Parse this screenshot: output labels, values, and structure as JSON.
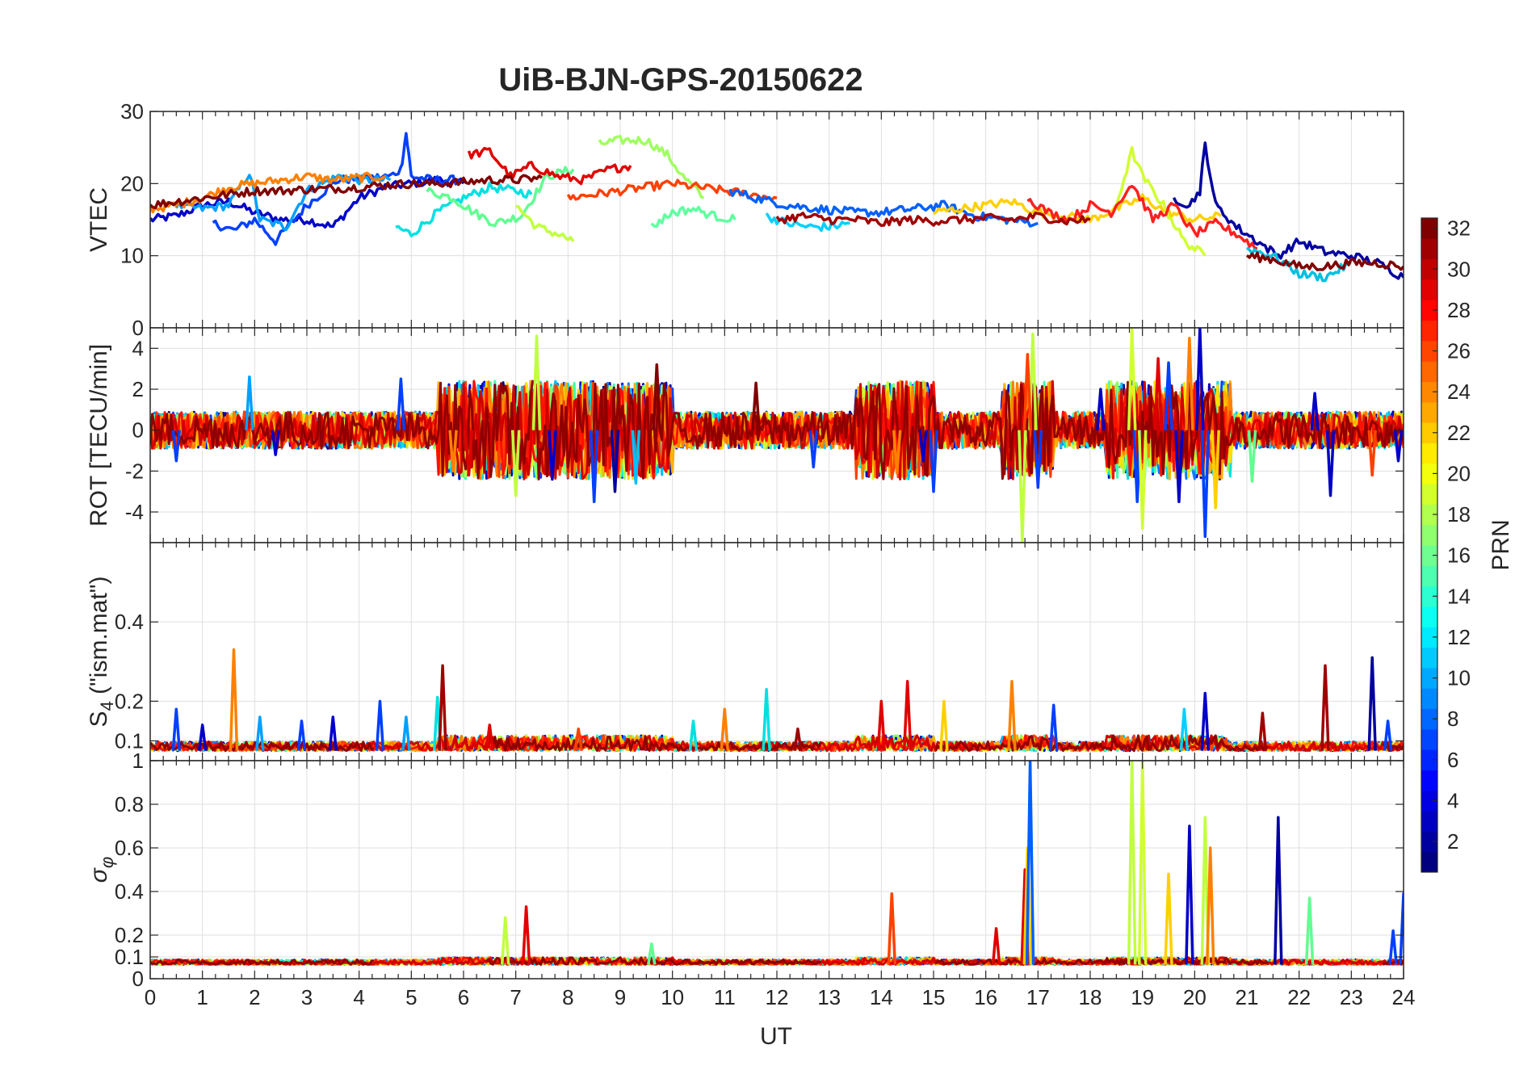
{
  "figure": {
    "title": "UiB-BJN-GPS-20150622",
    "xlabel": "UT",
    "colorbar_label": "PRN"
  },
  "chart_data": [
    {
      "type": "line",
      "panel": "vtec",
      "ylabel": "VTEC",
      "xlim": [
        0,
        24
      ],
      "ylim": [
        0,
        30
      ],
      "yticks": [
        0,
        10,
        20,
        30
      ],
      "grid": true,
      "series": [
        {
          "color": "#0000c8",
          "x": [
            0,
            0.5,
            1,
            1.5,
            2,
            2.5,
            3,
            3.5,
            4,
            4.5,
            5,
            5.5,
            6
          ],
          "y": [
            15,
            15.5,
            17,
            17.5,
            16,
            15,
            15,
            14,
            18,
            19.5,
            20,
            20.5,
            20
          ]
        },
        {
          "color": "#0040ff",
          "x": [
            1.2,
            1.6,
            2,
            2.4,
            3,
            3.6,
            4.2,
            4.6,
            4.8,
            4.9,
            5.0,
            5.4,
            6
          ],
          "y": [
            14.5,
            13.5,
            15,
            12,
            17,
            20.5,
            20.8,
            21,
            22,
            27,
            21,
            20.5,
            20.5
          ]
        },
        {
          "color": "#00a0ff",
          "x": [
            0.5,
            1,
            1.5,
            1.9,
            2.1,
            2.6,
            3,
            3.6,
            4,
            4.6
          ],
          "y": [
            17,
            16.5,
            17,
            21.5,
            15,
            14,
            19,
            21,
            20.5,
            20.5
          ]
        },
        {
          "color": "#00e0e0",
          "x": [
            4.7,
            5,
            5.5,
            6,
            6.5,
            7,
            7.3
          ],
          "y": [
            14,
            13,
            16,
            18,
            19.5,
            19,
            18.5
          ]
        },
        {
          "color": "#60ff90",
          "x": [
            5.3,
            5.8,
            6.2,
            6.6,
            7.1,
            7.6,
            8.1
          ],
          "y": [
            19,
            18,
            16,
            14.5,
            15.5,
            21,
            22
          ]
        },
        {
          "color": "#c0ff40",
          "x": [
            7.0,
            7.4,
            7.8,
            8.1
          ],
          "y": [
            17,
            14,
            13,
            12
          ]
        },
        {
          "color": "#a0ff60",
          "x": [
            8.6,
            9,
            9.5,
            9.9,
            10.2,
            10.6
          ],
          "y": [
            25.5,
            26,
            26,
            24,
            21,
            18
          ]
        },
        {
          "color": "#ff8000",
          "x": [
            0,
            0.5,
            1,
            1.5,
            2,
            2.5,
            3,
            3.5,
            4,
            4.5
          ],
          "y": [
            16.5,
            17,
            18,
            19.5,
            20,
            20.5,
            21,
            20.5,
            20.8,
            21
          ]
        },
        {
          "color": "#ff4000",
          "x": [
            8.0,
            8.5,
            9,
            9.5,
            10,
            10.5,
            11,
            11.5,
            12
          ],
          "y": [
            18,
            18.5,
            19,
            19.5,
            20,
            19.5,
            19,
            18.5,
            18
          ]
        },
        {
          "color": "#e00000",
          "x": [
            6.1,
            6.5,
            6.9,
            7.3,
            7.8,
            8.3,
            8.8,
            9.2
          ],
          "y": [
            24,
            24.5,
            21,
            22.5,
            21,
            20.5,
            22,
            22.5
          ]
        },
        {
          "color": "#800000",
          "x": [
            0,
            0.5,
            1,
            1.5,
            2,
            2.5,
            3,
            3.5,
            4,
            4.5,
            5,
            5.5,
            6,
            6.5,
            7,
            7.5
          ],
          "y": [
            17,
            17.5,
            18,
            18.5,
            19,
            19,
            19.2,
            19.3,
            19.5,
            19.8,
            20,
            20,
            20.2,
            20.5,
            20.5,
            20.8
          ]
        },
        {
          "color": "#0060ff",
          "x": [
            11.1,
            11.6,
            12.2,
            12.8,
            13.5,
            14,
            14.6,
            15.2,
            15.8,
            16.4,
            17
          ],
          "y": [
            19,
            18,
            17,
            16.5,
            16,
            16,
            16.5,
            17,
            15.5,
            15,
            14.5
          ]
        },
        {
          "color": "#00d0ff",
          "x": [
            11.8,
            12.2,
            12.6,
            13.0,
            13.4
          ],
          "y": [
            15.5,
            14.5,
            14,
            14,
            14.5
          ]
        },
        {
          "color": "#ffd000",
          "x": [
            15,
            15.5,
            16,
            16.5,
            17,
            17.5,
            18,
            18.5,
            19,
            19.5,
            20,
            20.5
          ],
          "y": [
            16,
            16.5,
            17,
            17.5,
            16,
            15.5,
            15,
            16.5,
            18,
            16,
            15,
            15.5
          ]
        },
        {
          "color": "#d0ff30",
          "x": [
            18.5,
            18.8,
            19,
            19.4,
            19.8,
            20.2
          ],
          "y": [
            17,
            24.5,
            21,
            17,
            12,
            10
          ]
        },
        {
          "color": "#0000a0",
          "x": [
            19.6,
            19.9,
            20.1,
            20.2,
            20.4,
            20.8,
            21.2,
            21.6,
            22,
            22.5,
            23,
            23.5,
            24
          ],
          "y": [
            18,
            17,
            19,
            25.5,
            17,
            14,
            12,
            10,
            12,
            10.5,
            10,
            9,
            7
          ]
        },
        {
          "color": "#ff2020",
          "x": [
            16.8,
            17.2,
            17.6,
            18,
            18.4,
            18.8,
            19.2,
            19.6,
            20,
            20.4,
            20.8,
            21.2
          ],
          "y": [
            18,
            16,
            15,
            17,
            16,
            20,
            15,
            17,
            13,
            14.5,
            13,
            11
          ]
        },
        {
          "color": "#00c0e0",
          "x": [
            21,
            21.5,
            22,
            22.5,
            23
          ],
          "y": [
            11,
            10,
            7.5,
            7,
            9
          ]
        },
        {
          "color": "#a00000",
          "x": [
            12,
            12.5,
            13,
            13.5,
            14,
            14.5,
            15,
            15.5,
            16,
            16.5,
            17,
            17.5,
            18
          ],
          "y": [
            15,
            15.5,
            15,
            15,
            14.5,
            15,
            14.8,
            15,
            15.2,
            15,
            15.5,
            14.8,
            15
          ]
        },
        {
          "color": "#800000",
          "x": [
            21,
            21.5,
            22,
            22.5,
            23,
            23.5,
            24
          ],
          "y": [
            10,
            9.5,
            8.5,
            8.5,
            9,
            9,
            8.5
          ]
        },
        {
          "color": "#60ffa0",
          "x": [
            9.6,
            10,
            10.4,
            10.8,
            11.2
          ],
          "y": [
            14,
            16,
            16.5,
            15.5,
            15
          ]
        }
      ]
    },
    {
      "type": "line",
      "panel": "rot",
      "ylabel": "ROT [TECU/min]",
      "xlim": [
        0,
        24
      ],
      "ylim": [
        -5.5,
        5
      ],
      "yticks": [
        -4,
        -2,
        0,
        2,
        4
      ],
      "grid": true,
      "spikes": [
        {
          "x": 0.5,
          "y": -1.5,
          "color": "#0040ff"
        },
        {
          "x": 1.9,
          "y": 2.6,
          "color": "#00a0ff"
        },
        {
          "x": 2.4,
          "y": -1.2,
          "color": "#0000c8"
        },
        {
          "x": 4.8,
          "y": 2.5,
          "color": "#0040ff"
        },
        {
          "x": 5.8,
          "y": -2.0,
          "color": "#ff8000"
        },
        {
          "x": 6.1,
          "y": -2.2,
          "color": "#e00000"
        },
        {
          "x": 7.0,
          "y": -3.2,
          "color": "#c0ff40"
        },
        {
          "x": 7.4,
          "y": 4.6,
          "color": "#c0ff40"
        },
        {
          "x": 7.7,
          "y": -2.4,
          "color": "#0000c8"
        },
        {
          "x": 8.5,
          "y": -3.5,
          "color": "#0040ff"
        },
        {
          "x": 8.9,
          "y": -3.0,
          "color": "#0000a0"
        },
        {
          "x": 9.3,
          "y": -2.6,
          "color": "#00c0ff"
        },
        {
          "x": 9.7,
          "y": 3.2,
          "color": "#800000"
        },
        {
          "x": 11.6,
          "y": 2.3,
          "color": "#800000"
        },
        {
          "x": 12.7,
          "y": -1.8,
          "color": "#0040ff"
        },
        {
          "x": 14.3,
          "y": -2.1,
          "color": "#ff8000"
        },
        {
          "x": 14.8,
          "y": -1.5,
          "color": "#0000c8"
        },
        {
          "x": 15.0,
          "y": -3.0,
          "color": "#0040ff"
        },
        {
          "x": 16.7,
          "y": -5.5,
          "color": "#c0ff40"
        },
        {
          "x": 16.9,
          "y": 4.7,
          "color": "#c0ff40"
        },
        {
          "x": 16.8,
          "y": 3.7,
          "color": "#ff4000"
        },
        {
          "x": 17.0,
          "y": -2.8,
          "color": "#0040ff"
        },
        {
          "x": 18.2,
          "y": 2.0,
          "color": "#0000c8"
        },
        {
          "x": 18.8,
          "y": 5.0,
          "color": "#d0ff30"
        },
        {
          "x": 18.9,
          "y": -3.5,
          "color": "#0040ff"
        },
        {
          "x": 19.0,
          "y": -4.8,
          "color": "#d0ff30"
        },
        {
          "x": 19.3,
          "y": 3.5,
          "color": "#e00000"
        },
        {
          "x": 19.5,
          "y": 3.3,
          "color": "#0040ff"
        },
        {
          "x": 19.7,
          "y": -3.5,
          "color": "#0000c8"
        },
        {
          "x": 19.9,
          "y": 4.5,
          "color": "#ff8000"
        },
        {
          "x": 20.1,
          "y": 5.0,
          "color": "#0000c8"
        },
        {
          "x": 20.2,
          "y": -5.2,
          "color": "#0040ff"
        },
        {
          "x": 20.4,
          "y": -3.8,
          "color": "#ffd000"
        },
        {
          "x": 21.1,
          "y": -2.5,
          "color": "#60ff90"
        },
        {
          "x": 22.3,
          "y": 1.8,
          "color": "#0000c8"
        },
        {
          "x": 22.6,
          "y": -3.2,
          "color": "#0000c8"
        },
        {
          "x": 23.4,
          "y": -2.2,
          "color": "#ff4000"
        },
        {
          "x": 23.9,
          "y": -1.5,
          "color": "#0000c8"
        }
      ]
    },
    {
      "type": "line",
      "panel": "s4",
      "ylabel_main": "S",
      "ylabel_sub": "4",
      "ylabel_rest": " (\"ism.mat\")",
      "xlim": [
        0,
        24
      ],
      "ylim": [
        0.05,
        0.6
      ],
      "yticks": [
        0.1,
        0.2,
        0.4
      ],
      "grid": true,
      "spikes": [
        {
          "x": 0.5,
          "y": 0.18,
          "color": "#0040ff"
        },
        {
          "x": 1.0,
          "y": 0.14,
          "color": "#0000c8"
        },
        {
          "x": 1.6,
          "y": 0.33,
          "color": "#ff8000"
        },
        {
          "x": 2.1,
          "y": 0.16,
          "color": "#00a0ff"
        },
        {
          "x": 2.9,
          "y": 0.15,
          "color": "#0040ff"
        },
        {
          "x": 3.5,
          "y": 0.16,
          "color": "#0000c8"
        },
        {
          "x": 4.4,
          "y": 0.2,
          "color": "#0040ff"
        },
        {
          "x": 4.9,
          "y": 0.16,
          "color": "#00a0ff"
        },
        {
          "x": 5.5,
          "y": 0.21,
          "color": "#00e0e0"
        },
        {
          "x": 5.6,
          "y": 0.29,
          "color": "#a00000"
        },
        {
          "x": 6.5,
          "y": 0.14,
          "color": "#e00000"
        },
        {
          "x": 8.2,
          "y": 0.13,
          "color": "#ff4000"
        },
        {
          "x": 10.4,
          "y": 0.15,
          "color": "#00e0e0"
        },
        {
          "x": 11.0,
          "y": 0.18,
          "color": "#ff8000"
        },
        {
          "x": 11.8,
          "y": 0.23,
          "color": "#00e0e0"
        },
        {
          "x": 12.4,
          "y": 0.13,
          "color": "#a00000"
        },
        {
          "x": 14.0,
          "y": 0.2,
          "color": "#e00000"
        },
        {
          "x": 14.5,
          "y": 0.25,
          "color": "#e00000"
        },
        {
          "x": 15.2,
          "y": 0.2,
          "color": "#ffd000"
        },
        {
          "x": 16.5,
          "y": 0.25,
          "color": "#ff8000"
        },
        {
          "x": 17.3,
          "y": 0.19,
          "color": "#0040ff"
        },
        {
          "x": 19.8,
          "y": 0.18,
          "color": "#00d0ff"
        },
        {
          "x": 20.2,
          "y": 0.22,
          "color": "#0000c8"
        },
        {
          "x": 21.3,
          "y": 0.17,
          "color": "#a00000"
        },
        {
          "x": 22.5,
          "y": 0.29,
          "color": "#a00000"
        },
        {
          "x": 23.4,
          "y": 0.31,
          "color": "#0000a0"
        },
        {
          "x": 23.7,
          "y": 0.15,
          "color": "#0040ff"
        }
      ]
    },
    {
      "type": "line",
      "panel": "sigma",
      "ylabel_main": "σ",
      "ylabel_sub": "φ",
      "xlim": [
        0,
        24
      ],
      "ylim": [
        0,
        1
      ],
      "yticks": [
        0,
        0.1,
        0.2,
        0.4,
        0.6,
        0.8,
        1
      ],
      "xticks": [
        0,
        1,
        2,
        3,
        4,
        5,
        6,
        7,
        8,
        9,
        10,
        11,
        12,
        13,
        14,
        15,
        16,
        17,
        18,
        19,
        20,
        21,
        22,
        23,
        24
      ],
      "grid": true,
      "spikes": [
        {
          "x": 6.8,
          "y": 0.28,
          "color": "#c0ff40"
        },
        {
          "x": 7.2,
          "y": 0.33,
          "color": "#e00000"
        },
        {
          "x": 9.6,
          "y": 0.16,
          "color": "#60ff90"
        },
        {
          "x": 14.2,
          "y": 0.39,
          "color": "#ff4000"
        },
        {
          "x": 16.2,
          "y": 0.23,
          "color": "#e00000"
        },
        {
          "x": 16.75,
          "y": 0.5,
          "color": "#e00000"
        },
        {
          "x": 16.8,
          "y": 0.6,
          "color": "#ffd000"
        },
        {
          "x": 16.85,
          "y": 1.0,
          "color": "#0060ff"
        },
        {
          "x": 18.8,
          "y": 1.0,
          "color": "#c0ff40"
        },
        {
          "x": 19.0,
          "y": 1.0,
          "color": "#d0ff30"
        },
        {
          "x": 19.5,
          "y": 0.48,
          "color": "#ffd000"
        },
        {
          "x": 19.9,
          "y": 0.7,
          "color": "#0000c8"
        },
        {
          "x": 20.2,
          "y": 0.74,
          "color": "#c0ff40"
        },
        {
          "x": 20.3,
          "y": 0.6,
          "color": "#ff8000"
        },
        {
          "x": 21.6,
          "y": 0.74,
          "color": "#0000a0"
        },
        {
          "x": 22.2,
          "y": 0.37,
          "color": "#60ff90"
        },
        {
          "x": 23.8,
          "y": 0.22,
          "color": "#0040ff"
        },
        {
          "x": 24.0,
          "y": 0.39,
          "color": "#0040ff"
        }
      ]
    },
    {
      "type": "colorbar",
      "label": "PRN",
      "range": [
        1,
        32
      ],
      "ticks": [
        2,
        4,
        6,
        8,
        10,
        12,
        14,
        16,
        18,
        20,
        22,
        24,
        26,
        28,
        30,
        32
      ],
      "colormap": "jet"
    }
  ]
}
